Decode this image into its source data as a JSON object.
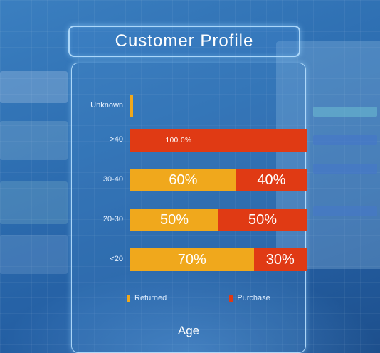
{
  "title": "Customer Profile",
  "chart_data": {
    "type": "bar",
    "orientation": "horizontal",
    "stacked": true,
    "categories": [
      "Unknown",
      ">40",
      "30-40",
      "20-30",
      "<20"
    ],
    "series": [
      {
        "name": "Returned",
        "values": [
          100,
          0,
          60,
          50,
          70
        ],
        "color": "#f0a81c",
        "labels": [
          "",
          "",
          "60%",
          "50%",
          "70%"
        ]
      },
      {
        "name": "Purchase",
        "values": [
          0,
          100,
          40,
          50,
          30
        ],
        "color": "#e03a14",
        "labels": [
          "",
          "100.0%",
          "40%",
          "50%",
          "30%"
        ]
      }
    ],
    "bar_fraction_of_width": [
      0.01,
      1,
      1,
      1,
      1
    ],
    "xlabel": "Age",
    "legend_position": "bottom",
    "grid": false
  }
}
